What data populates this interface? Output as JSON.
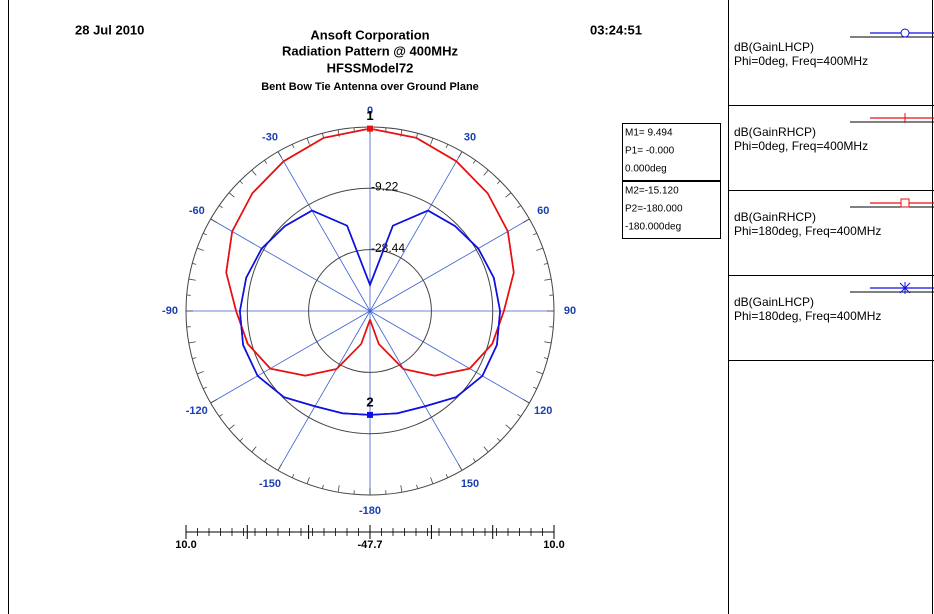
{
  "chart_data": {
    "type": "polar",
    "date": "28 Jul 2010",
    "time": "03:24:51",
    "title": "Ansoft Corporation",
    "subtitle": "Radiation Pattern @ 400MHz",
    "model": "HFSSModel72",
    "caption": "Bent Bow Tie Antenna over Ground Plane",
    "x": [
      -180,
      -165,
      -150,
      -135,
      -120,
      -105,
      -90,
      -75,
      -60,
      -45,
      -30,
      -15,
      0,
      15,
      30,
      45,
      60,
      75,
      90,
      105,
      120,
      135,
      150,
      165,
      180
    ],
    "series": [
      {
        "name": "dB(GainLHCP)",
        "detail": "Phi=0deg, Freq=400MHz",
        "color": "#1010e0",
        "symbol": "circle",
        "values": [
          -15.12,
          -14.5,
          -13.2,
          -9.5,
          -7,
          -6.5,
          -6.9,
          -7.5,
          -8.5,
          -10,
          -11.3,
          -20,
          -39.5,
          -20,
          -11.3,
          -10,
          -8.5,
          -7.5,
          -6.9,
          -6.5,
          -7,
          -9.5,
          -13.2,
          -14.5,
          -15.12
        ]
      },
      {
        "name": "dB(GainRHCP)",
        "detail": "Phi=0deg, Freq=400MHz",
        "color": "#e81010",
        "symbol": "plus",
        "values": [
          -45,
          -37,
          -26.7,
          -19,
          -11.6,
          -8,
          -5.7,
          -1,
          2.2,
          4.5,
          6.5,
          8.5,
          9.494,
          8.5,
          6.5,
          4.5,
          2.2,
          -1,
          -5.7,
          -8,
          -11.6,
          -19,
          -26.7,
          -37,
          -45
        ]
      },
      {
        "name": "dB(GainRHCP)",
        "detail": "Phi=180deg, Freq=400MHz",
        "color": "#e81010",
        "symbol": "square",
        "values": [
          -45,
          -37,
          -26.7,
          -19,
          -11.6,
          -8,
          -5.7,
          -1,
          2.2,
          4.5,
          6.5,
          8.5,
          9.494,
          8.5,
          6.5,
          4.5,
          2.2,
          -1,
          -5.7,
          -8,
          -11.6,
          -19,
          -26.7,
          -37,
          -45
        ]
      },
      {
        "name": "dB(GainLHCP)",
        "detail": "Phi=180deg, Freq=400MHz",
        "color": "#1010e0",
        "symbol": "star",
        "values": [
          -15.12,
          -14.5,
          -13.2,
          -9.5,
          -7,
          -6.5,
          -6.9,
          -7.5,
          -8.5,
          -10,
          -11.3,
          -20,
          -39.5,
          -20,
          -11.3,
          -10,
          -8.5,
          -7.5,
          -6.9,
          -6.5,
          -7,
          -9.5,
          -13.2,
          -14.5,
          -15.12
        ]
      }
    ],
    "rlim": [
      -47.7,
      10
    ],
    "rticks": [
      -47.7,
      -28.44,
      -9.22,
      {
        "value": 10,
        "label": "10.0"
      }
    ],
    "thetaticks": [
      -180,
      -150,
      -120,
      -90,
      -60,
      -30,
      0,
      30,
      60,
      90,
      120,
      150
    ],
    "markers": [
      {
        "label": "1",
        "theta": 0,
        "value": 9.494,
        "text": [
          "M1= 9.494",
          "P1= -0.000",
          "0.000deg"
        ]
      },
      {
        "label": "2",
        "theta": 180,
        "value": -15.12,
        "text": [
          "M2=-15.120",
          "P2=-180.000",
          "-180.000deg"
        ]
      }
    ]
  }
}
